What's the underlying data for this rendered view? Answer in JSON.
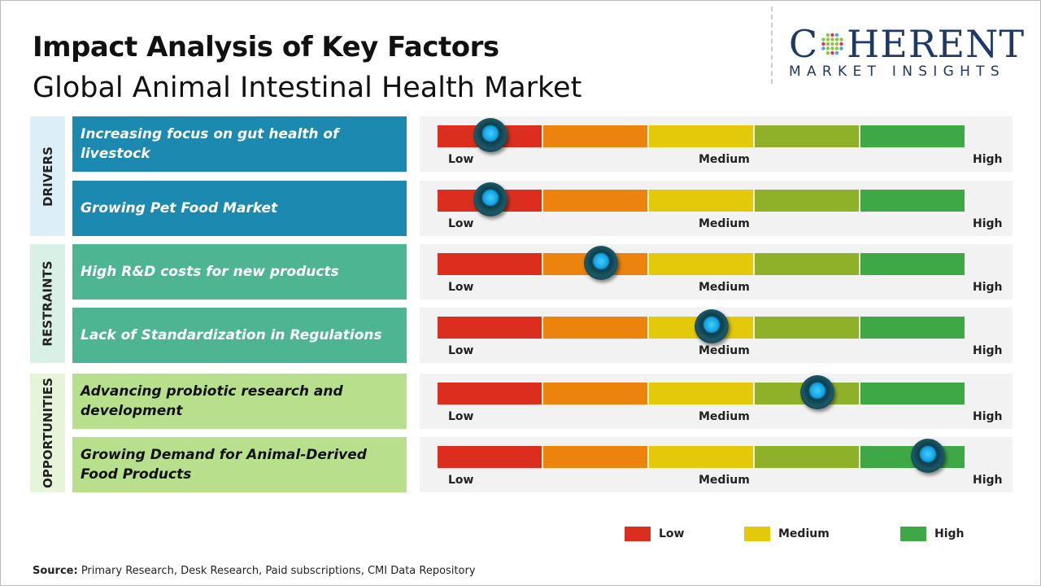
{
  "title": "Impact Analysis of Key Factors",
  "subtitle": "Global Animal Intestinal Health Market",
  "logo": {
    "top": "COHERENT",
    "bottom": "MARKET INSIGHTS"
  },
  "colors": {
    "low": "#dc2e1f",
    "low_mid": "#ec830c",
    "medium": "#e3c90a",
    "mid_high": "#8fb12a",
    "high": "#3fa846"
  },
  "chart_data": {
    "type": "gauge-bars",
    "scale_labels": [
      "Low",
      "Medium",
      "High"
    ],
    "groups": [
      {
        "name": "DRIVERS",
        "factors": [
          {
            "label": "Increasing focus on gut health of livestock",
            "impact": 0.1
          },
          {
            "label": "Growing Pet Food Market",
            "impact": 0.1
          }
        ]
      },
      {
        "name": "RESTRAINTS",
        "factors": [
          {
            "label": "High R&D costs for new products",
            "impact": 0.31
          },
          {
            "label": "Lack of Standardization  in Regulations",
            "impact": 0.52
          }
        ]
      },
      {
        "name": "OPPORTUNITIES",
        "factors": [
          {
            "label": "Advancing probiotic  research and development",
            "impact": 0.72
          },
          {
            "label": "Growing Demand for Animal-Derived  Food Products",
            "impact": 0.93
          }
        ]
      }
    ],
    "legend": [
      "Low",
      "Medium",
      "High"
    ]
  },
  "source": {
    "label": "Source:",
    "text": " Primary Research, Desk Research, Paid subscriptions, CMI Data Repository"
  }
}
